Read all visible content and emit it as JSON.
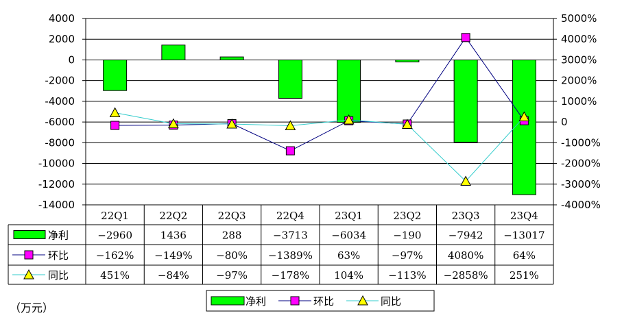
{
  "chart_data": {
    "type": "bar+line",
    "categories": [
      "22Q1",
      "22Q2",
      "22Q3",
      "22Q4",
      "23Q1",
      "23Q2",
      "23Q3",
      "23Q4"
    ],
    "series": [
      {
        "name": "净利",
        "type": "bar",
        "axis": "left",
        "color": "#00ff00",
        "values": [
          -2960,
          1436,
          288,
          -3713,
          -6034,
          -190,
          -7942,
          -13017
        ],
        "labels": [
          "-2960",
          "1436",
          "288",
          "-3713",
          "-6034",
          "-190",
          "-7942",
          "-13017"
        ]
      },
      {
        "name": "环比",
        "type": "line",
        "axis": "right",
        "color": "#000080",
        "marker_color": "#ff00ff",
        "values": [
          -162,
          -149,
          -80,
          -1389,
          63,
          -97,
          4080,
          64
        ],
        "labels": [
          "-162%",
          "-149%",
          "-80%",
          "-1389%",
          "63%",
          "-97%",
          "4080%",
          "64%"
        ]
      },
      {
        "name": "同比",
        "type": "line",
        "axis": "right",
        "color": "#33cccc",
        "marker_color": "#ffff00",
        "values": [
          451,
          -84,
          -97,
          -178,
          104,
          -113,
          -2858,
          251
        ],
        "labels": [
          "451%",
          "-84%",
          "-97%",
          "-178%",
          "104%",
          "-113%",
          "-2858%",
          "251%"
        ]
      }
    ],
    "y_left": {
      "min": -14000,
      "max": 4000,
      "step": 2000,
      "ticks": [
        "4000",
        "2000",
        "0",
        "-2000",
        "-4000",
        "-6000",
        "-8000",
        "-10000",
        "-12000",
        "-14000"
      ]
    },
    "y_right": {
      "min": -4000,
      "max": 5000,
      "step": 1000,
      "ticks": [
        "5000%",
        "4000%",
        "3000%",
        "2000%",
        "1000%",
        "0",
        "-1000%",
        "-2000%",
        "-3000%",
        "-4000%"
      ]
    },
    "grid": true,
    "legend_position": "bottom",
    "unit_label": "（万元）"
  }
}
